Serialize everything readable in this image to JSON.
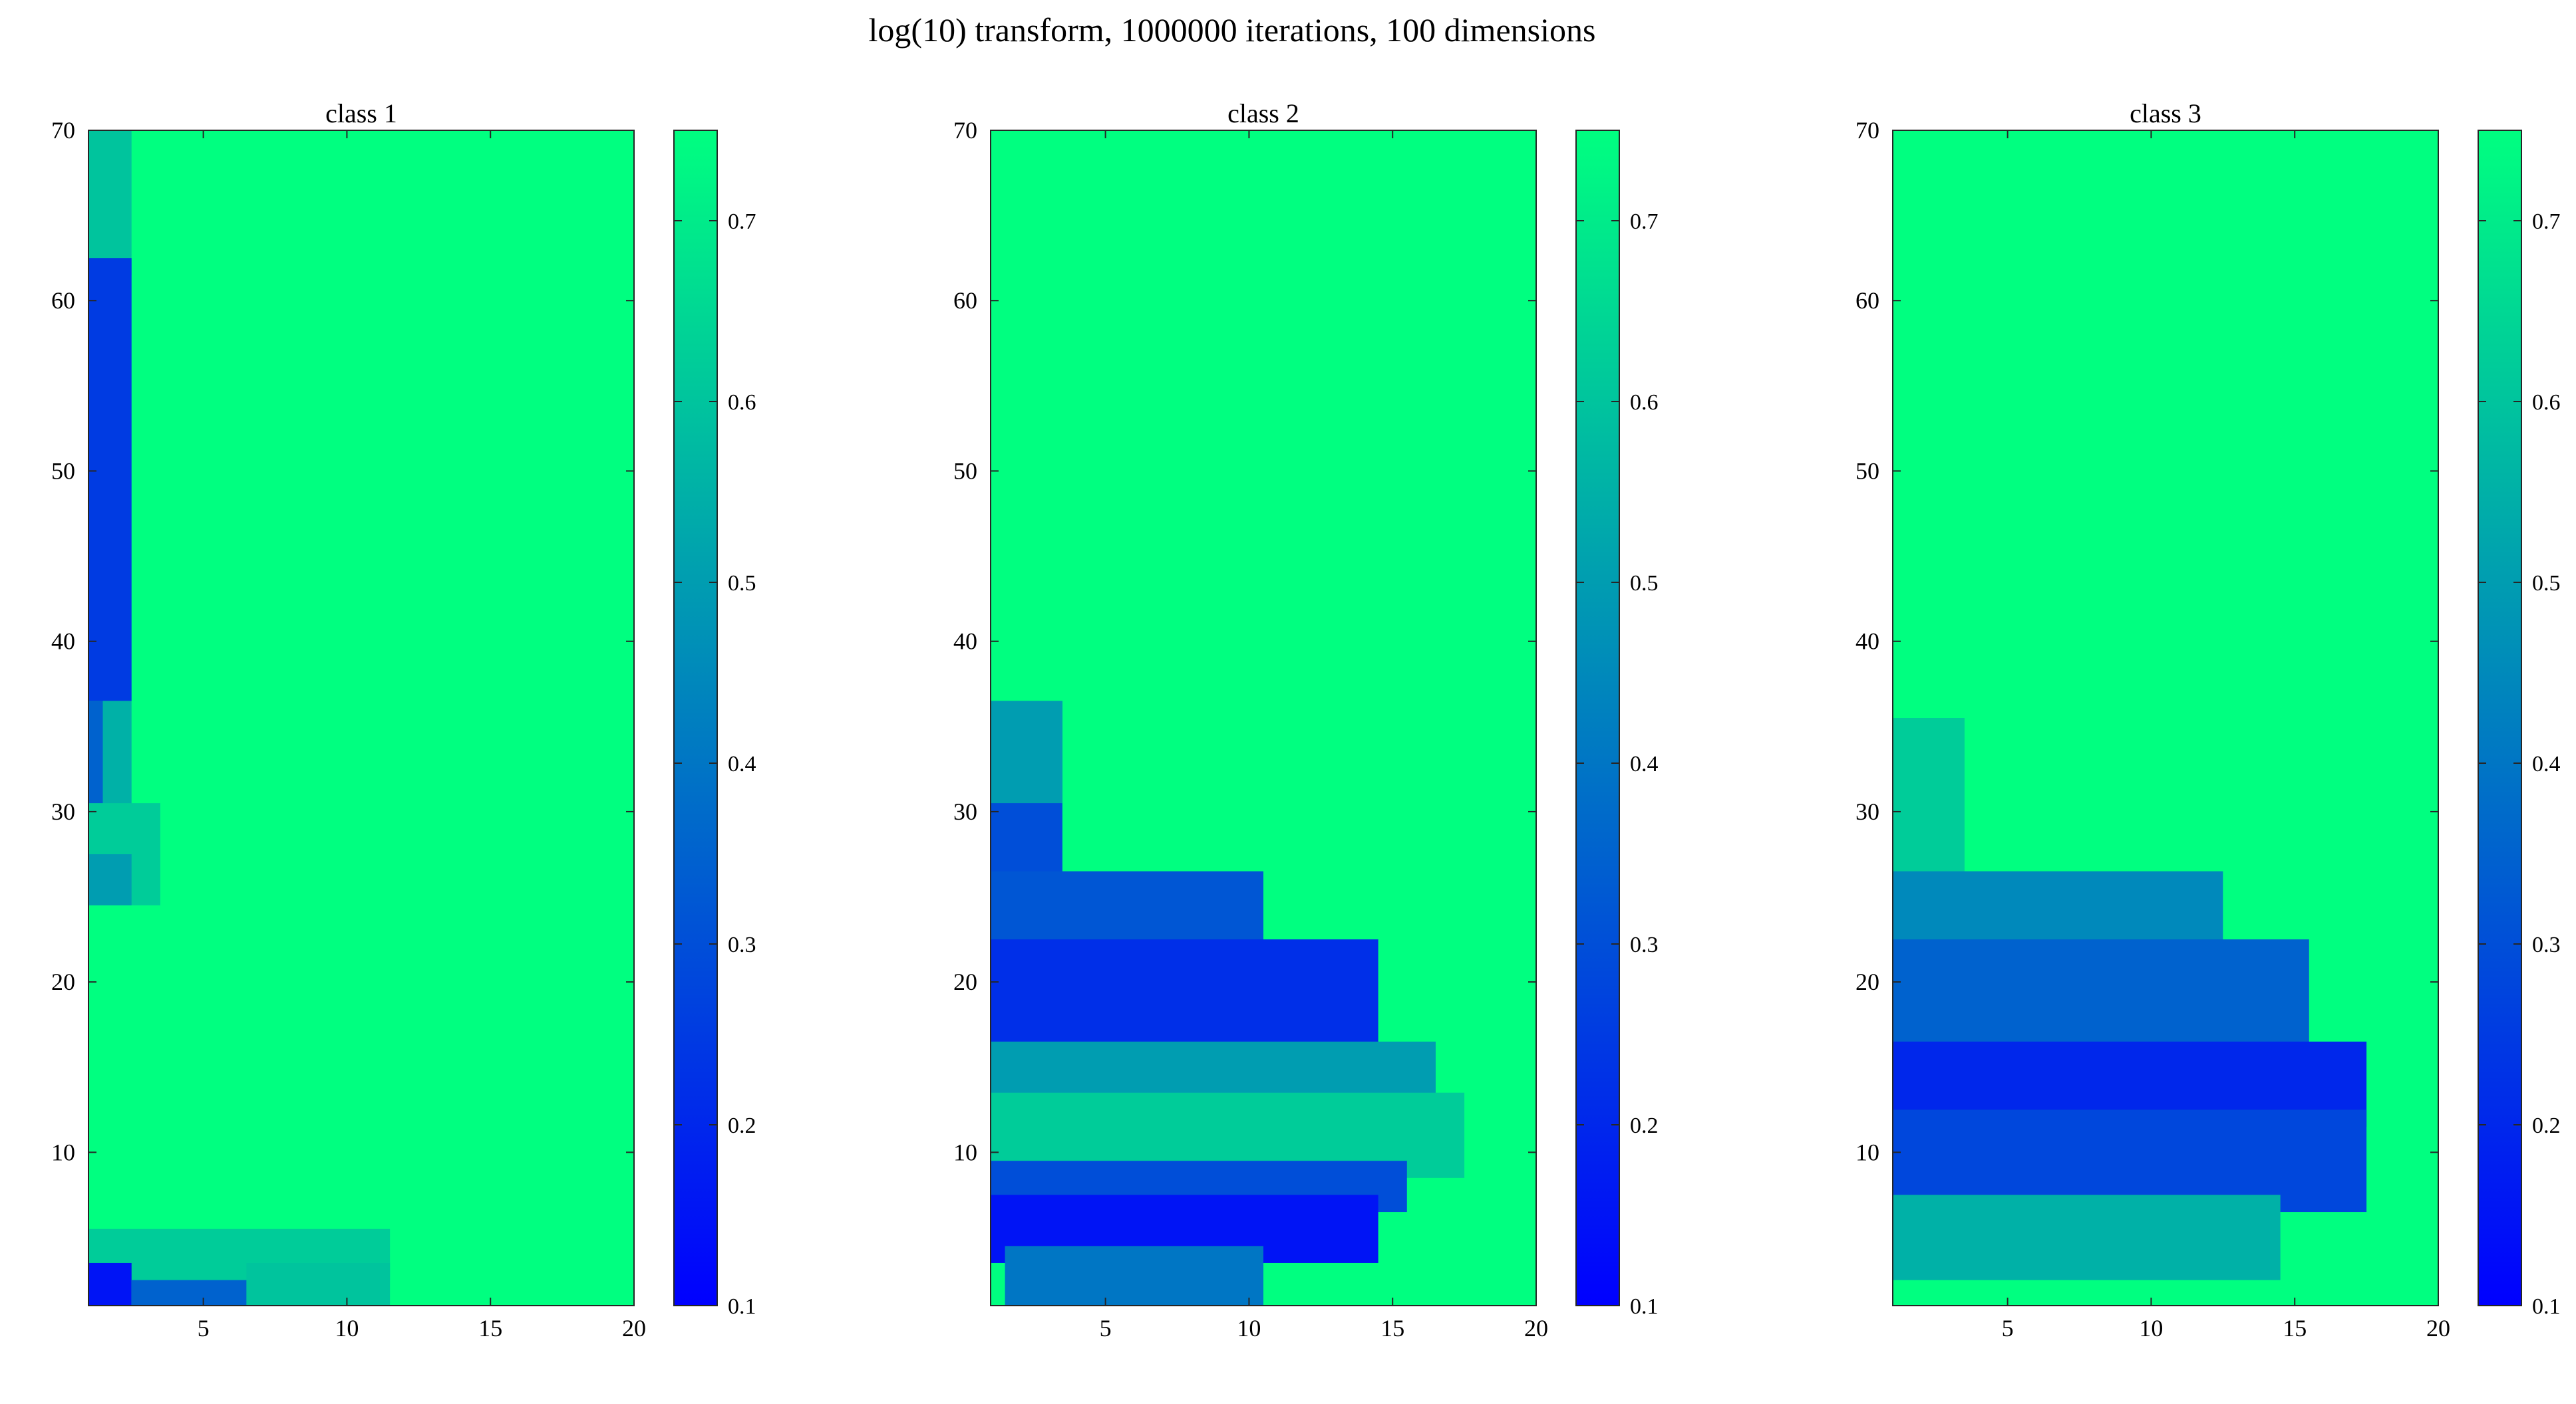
{
  "figure": {
    "title": "log(10) transform, 1000000 iterations, 100 dimensions"
  },
  "chart_data": [
    {
      "type": "heatmap",
      "title": "class 1",
      "xlabel": "",
      "ylabel": "",
      "x_range": [
        1,
        20
      ],
      "y_range": [
        1,
        70
      ],
      "x_ticks": [
        "5",
        "10",
        "15",
        "20"
      ],
      "y_ticks": [
        "10",
        "20",
        "30",
        "40",
        "50",
        "60",
        "70"
      ],
      "colorbar_range": [
        0.1,
        0.75
      ],
      "colorbar_ticks": [
        "0.1",
        "0.2",
        "0.3",
        "0.4",
        "0.5",
        "0.6",
        "0.7"
      ],
      "colormap": "winter",
      "colors": {
        "low": "#0000ff",
        "high": "#00ff80"
      },
      "background_value": 0.75,
      "regions": [
        {
          "x": [
            1,
            2
          ],
          "y": [
            62,
            70
          ],
          "value": 0.6
        },
        {
          "x": [
            1,
            2
          ],
          "y": [
            37,
            62
          ],
          "value": 0.25
        },
        {
          "x": [
            2,
            2
          ],
          "y": [
            30,
            36
          ],
          "value": 0.55
        },
        {
          "x": [
            1,
            1
          ],
          "y": [
            28,
            36
          ],
          "value": 0.35
        },
        {
          "x": [
            1,
            3
          ],
          "y": [
            25,
            30
          ],
          "value": 0.62
        },
        {
          "x": [
            1,
            2
          ],
          "y": [
            25,
            27
          ],
          "value": 0.5
        },
        {
          "x": [
            1,
            11
          ],
          "y": [
            3,
            5
          ],
          "value": 0.62
        },
        {
          "x": [
            1,
            2
          ],
          "y": [
            1,
            3
          ],
          "value": 0.15
        },
        {
          "x": [
            3,
            7
          ],
          "y": [
            1,
            2
          ],
          "value": 0.35
        },
        {
          "x": [
            7,
            11
          ],
          "y": [
            1,
            3
          ],
          "value": 0.6
        }
      ]
    },
    {
      "type": "heatmap",
      "title": "class 2",
      "xlabel": "",
      "ylabel": "",
      "x_range": [
        1,
        20
      ],
      "y_range": [
        1,
        70
      ],
      "x_ticks": [
        "5",
        "10",
        "15",
        "20"
      ],
      "y_ticks": [
        "10",
        "20",
        "30",
        "40",
        "50",
        "60",
        "70"
      ],
      "colorbar_range": [
        0.1,
        0.75
      ],
      "colorbar_ticks": [
        "0.1",
        "0.2",
        "0.3",
        "0.4",
        "0.5",
        "0.6",
        "0.7"
      ],
      "colormap": "winter",
      "colors": {
        "low": "#0000ff",
        "high": "#00ff80"
      },
      "background_value": 0.75,
      "regions": [
        {
          "x": [
            1,
            3
          ],
          "y": [
            25,
            36
          ],
          "value": 0.3
        },
        {
          "x": [
            1,
            3
          ],
          "y": [
            31,
            36
          ],
          "value": 0.5
        },
        {
          "x": [
            1,
            10
          ],
          "y": [
            22,
            26
          ],
          "value": 0.32
        },
        {
          "x": [
            1,
            14
          ],
          "y": [
            16,
            22
          ],
          "value": 0.22
        },
        {
          "x": [
            1,
            16
          ],
          "y": [
            13,
            16
          ],
          "value": 0.5
        },
        {
          "x": [
            1,
            17
          ],
          "y": [
            9,
            13
          ],
          "value": 0.62
        },
        {
          "x": [
            1,
            15
          ],
          "y": [
            7,
            9
          ],
          "value": 0.3
        },
        {
          "x": [
            1,
            14
          ],
          "y": [
            4,
            7
          ],
          "value": 0.15
        },
        {
          "x": [
            2,
            10
          ],
          "y": [
            1,
            4
          ],
          "value": 0.4
        }
      ]
    },
    {
      "type": "heatmap",
      "title": "class 3",
      "xlabel": "",
      "ylabel": "",
      "x_range": [
        1,
        20
      ],
      "y_range": [
        1,
        70
      ],
      "x_ticks": [
        "5",
        "10",
        "15",
        "20"
      ],
      "y_ticks": [
        "10",
        "20",
        "30",
        "40",
        "50",
        "60",
        "70"
      ],
      "colorbar_range": [
        0.1,
        0.75
      ],
      "colorbar_ticks": [
        "0.1",
        "0.2",
        "0.3",
        "0.4",
        "0.5",
        "0.6",
        "0.7"
      ],
      "colormap": "winter",
      "colors": {
        "low": "#0000ff",
        "high": "#00ff80"
      },
      "background_value": 0.75,
      "regions": [
        {
          "x": [
            1,
            3
          ],
          "y": [
            24,
            35
          ],
          "value": 0.62
        },
        {
          "x": [
            1,
            12
          ],
          "y": [
            22,
            26
          ],
          "value": 0.45
        },
        {
          "x": [
            1,
            15
          ],
          "y": [
            16,
            22
          ],
          "value": 0.35
        },
        {
          "x": [
            1,
            17
          ],
          "y": [
            12,
            16
          ],
          "value": 0.2
        },
        {
          "x": [
            1,
            17
          ],
          "y": [
            7,
            12
          ],
          "value": 0.28
        },
        {
          "x": [
            1,
            14
          ],
          "y": [
            3,
            7
          ],
          "value": 0.55
        }
      ]
    }
  ]
}
